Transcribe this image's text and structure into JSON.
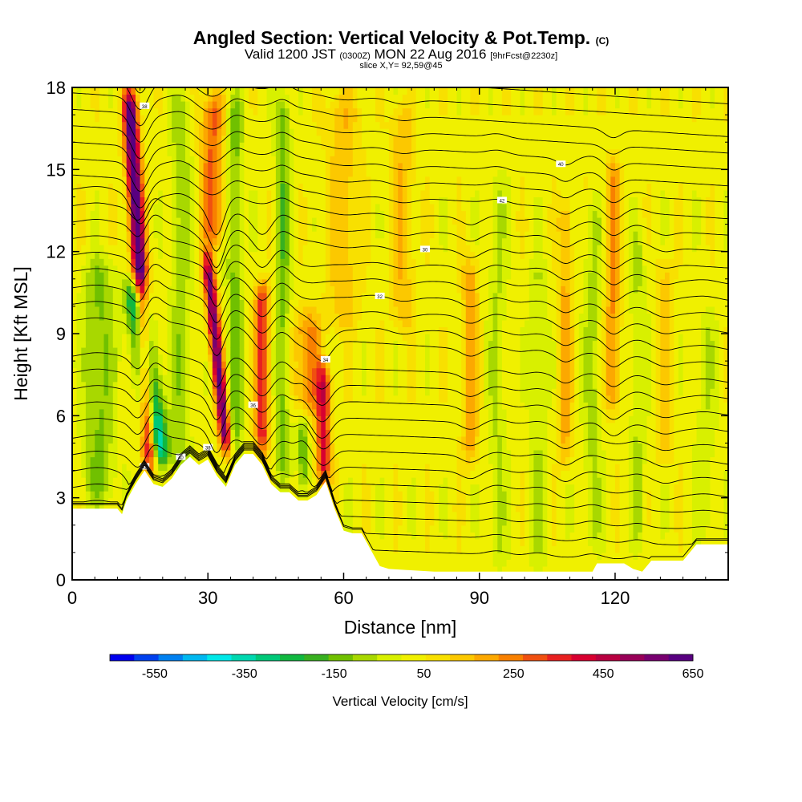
{
  "title": {
    "main": "Angled Section: Vertical Velocity & Pot.Temp.",
    "main_unit": "(C)",
    "valid_prefix": "Valid 1200 JST",
    "valid_utc": "(0300Z)",
    "valid_date": "MON 22 Aug 2016",
    "forecast": "[9hrFcst@2230z]",
    "slice": "slice X,Y= 92,59@45"
  },
  "chart_data": {
    "type": "heatmap",
    "xlabel": "Distance [nm]",
    "ylabel": "Height [Kft MSL]",
    "xlim": [
      0,
      145
    ],
    "ylim": [
      0,
      18
    ],
    "x_ticks": [
      0,
      30,
      60,
      90,
      120
    ],
    "y_ticks": [
      0,
      3,
      6,
      9,
      12,
      15,
      18
    ],
    "colorbar": {
      "title": "Vertical Velocity [cm/s]",
      "labels": [
        -550,
        -350,
        -150,
        50,
        250,
        450,
        650
      ],
      "min": -650,
      "max": 650,
      "colors": [
        "#0000ee",
        "#0040ee",
        "#0080f0",
        "#00b8f0",
        "#00e8e8",
        "#00d8b0",
        "#00c878",
        "#10b840",
        "#38b020",
        "#70c000",
        "#a8d800",
        "#d8f000",
        "#f0f000",
        "#f8e000",
        "#fcc800",
        "#fca800",
        "#f88000",
        "#f05010",
        "#e82020",
        "#d80030",
        "#b80040",
        "#980058",
        "#780070",
        "#580080"
      ]
    },
    "terrain": [
      [
        0,
        2.6
      ],
      [
        5,
        2.6
      ],
      [
        10,
        2.6
      ],
      [
        11,
        2.4
      ],
      [
        12,
        2.9
      ],
      [
        14,
        3.5
      ],
      [
        16,
        4.0
      ],
      [
        18,
        3.5
      ],
      [
        20,
        3.4
      ],
      [
        22,
        3.7
      ],
      [
        24,
        4.2
      ],
      [
        26,
        4.5
      ],
      [
        28,
        4.2
      ],
      [
        30,
        4.4
      ],
      [
        32,
        3.8
      ],
      [
        34,
        3.4
      ],
      [
        36,
        4.2
      ],
      [
        38,
        4.6
      ],
      [
        40,
        4.6
      ],
      [
        42,
        4.2
      ],
      [
        44,
        3.5
      ],
      [
        46,
        3.2
      ],
      [
        48,
        3.2
      ],
      [
        50,
        2.9
      ],
      [
        52,
        2.9
      ],
      [
        54,
        3.1
      ],
      [
        56,
        3.6
      ],
      [
        58,
        2.6
      ],
      [
        60,
        1.8
      ],
      [
        62,
        1.7
      ],
      [
        64,
        1.7
      ],
      [
        66,
        1.1
      ],
      [
        68,
        0.5
      ],
      [
        70,
        0.4
      ],
      [
        80,
        0.3
      ],
      [
        100,
        0.3
      ],
      [
        115,
        0.3
      ],
      [
        116,
        0.6
      ],
      [
        122,
        0.6
      ],
      [
        124,
        0.4
      ],
      [
        126,
        0.3
      ],
      [
        128,
        0.7
      ],
      [
        135,
        0.7
      ],
      [
        138,
        1.3
      ],
      [
        145,
        1.3
      ]
    ],
    "velocity_features": [
      {
        "x": 15,
        "w": 1.6,
        "amp": 650,
        "ylo": 4,
        "yhi": 18,
        "tilt": -0.35
      },
      {
        "x": 16.5,
        "w": 2.4,
        "amp": -560,
        "ylo": 4.2,
        "yhi": 11,
        "tilt": -0.8
      },
      {
        "x": 6,
        "w": 3.5,
        "amp": -150,
        "ylo": 2.6,
        "yhi": 12,
        "tilt": 0
      },
      {
        "x": 24,
        "w": 2.2,
        "amp": -120,
        "ylo": 3.5,
        "yhi": 18,
        "tilt": 0
      },
      {
        "x": 32,
        "w": 1.3,
        "amp": 560,
        "ylo": 4.5,
        "yhi": 12,
        "tilt": -0.6
      },
      {
        "x": 31,
        "w": 2.5,
        "amp": 250,
        "ylo": 12,
        "yhi": 18,
        "tilt": 0
      },
      {
        "x": 36,
        "w": 1.8,
        "amp": -160,
        "ylo": 4.3,
        "yhi": 18,
        "tilt": 0
      },
      {
        "x": 42,
        "w": 1.6,
        "amp": 330,
        "ylo": 4.5,
        "yhi": 11,
        "tilt": 0
      },
      {
        "x": 46.5,
        "w": 1.6,
        "amp": -170,
        "ylo": 3.5,
        "yhi": 18,
        "tilt": 0
      },
      {
        "x": 51,
        "w": 1.2,
        "amp": -190,
        "ylo": 3.0,
        "yhi": 6,
        "tilt": 0
      },
      {
        "x": 55.5,
        "w": 1.6,
        "amp": 360,
        "ylo": 3.3,
        "yhi": 8,
        "tilt": 0
      },
      {
        "x": 52,
        "w": 3.0,
        "amp": 210,
        "ylo": 6,
        "yhi": 10,
        "tilt": 0
      },
      {
        "x": 60,
        "w": 3.5,
        "amp": 120,
        "ylo": 9,
        "yhi": 18,
        "tilt": 0
      },
      {
        "x": 73,
        "w": 2.5,
        "amp": 130,
        "ylo": 9,
        "yhi": 17.5,
        "tilt": 0
      },
      {
        "x": 88,
        "w": 1.8,
        "amp": 160,
        "ylo": 4,
        "yhi": 12,
        "tilt": 0
      },
      {
        "x": 94,
        "w": 2.0,
        "amp": -90,
        "ylo": 0.3,
        "yhi": 15,
        "tilt": 0
      },
      {
        "x": 103,
        "w": 2.0,
        "amp": -80,
        "ylo": 0.3,
        "yhi": 12,
        "tilt": 0
      },
      {
        "x": 109,
        "w": 1.5,
        "amp": 150,
        "ylo": 4,
        "yhi": 14,
        "tilt": 0
      },
      {
        "x": 115,
        "w": 2.0,
        "amp": -100,
        "ylo": 1,
        "yhi": 14,
        "tilt": 0
      },
      {
        "x": 119.5,
        "w": 1.6,
        "amp": 200,
        "ylo": 6,
        "yhi": 15.5,
        "tilt": 0
      },
      {
        "x": 125,
        "w": 1.8,
        "amp": -90,
        "ylo": 1,
        "yhi": 13,
        "tilt": 0
      },
      {
        "x": 131,
        "w": 1.8,
        "amp": 100,
        "ylo": 4,
        "yhi": 12,
        "tilt": 0
      },
      {
        "x": 140,
        "w": 2.5,
        "amp": -70,
        "ylo": 1.3,
        "yhi": 10,
        "tilt": 0
      }
    ],
    "background_velocity": 30,
    "isentrope_labels": [
      "42",
      "40",
      "38",
      "36",
      "34",
      "32",
      "30"
    ]
  }
}
